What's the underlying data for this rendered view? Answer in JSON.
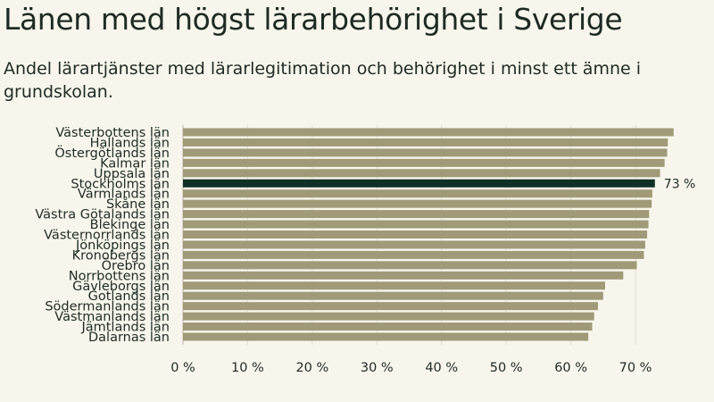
{
  "chart_data": {
    "type": "bar",
    "orientation": "horizontal",
    "title": "Länen med högst lärarbehörighet i Sverige",
    "subtitle": "Andel lärartjänster med lärarlegitimation och behörighet i minst ett ämne i grundskolan.",
    "categories": [
      "Västerbottens län",
      "Hallands län",
      "Östergötlands län",
      "Kalmar län",
      "Uppsala län",
      "Stockholms län",
      "Värmlands län",
      "Skåne län",
      "Västra Götalands län",
      "Blekinge län",
      "Västernorrlands län",
      "Jönköpings län",
      "Kronobergs län",
      "Örebro län",
      "Norrbottens län",
      "Gävleborgs län",
      "Gotlands län",
      "Södermanlands län",
      "Västmanlands län",
      "Jämtlands län",
      "Dalarnas län"
    ],
    "values": [
      75.9,
      75.0,
      74.9,
      74.5,
      73.8,
      73.0,
      72.6,
      72.5,
      72.1,
      72.0,
      71.8,
      71.5,
      71.3,
      70.2,
      68.1,
      65.3,
      65.0,
      64.2,
      63.6,
      63.3,
      62.7
    ],
    "highlight": "Stockholms län",
    "highlight_label": "73 %",
    "xlim": [
      0,
      78
    ],
    "xticks": [
      0,
      10,
      20,
      30,
      40,
      50,
      60,
      70
    ],
    "xtick_labels": [
      "0 %",
      "10 %",
      "20 %",
      "30 %",
      "40 %",
      "50 %",
      "60 %",
      "70 %"
    ],
    "grid": true,
    "colors": {
      "bar": "#a09a78",
      "highlight": "#0f3026",
      "grid": "#dddcd0",
      "axis": "#b8b7aa"
    }
  }
}
